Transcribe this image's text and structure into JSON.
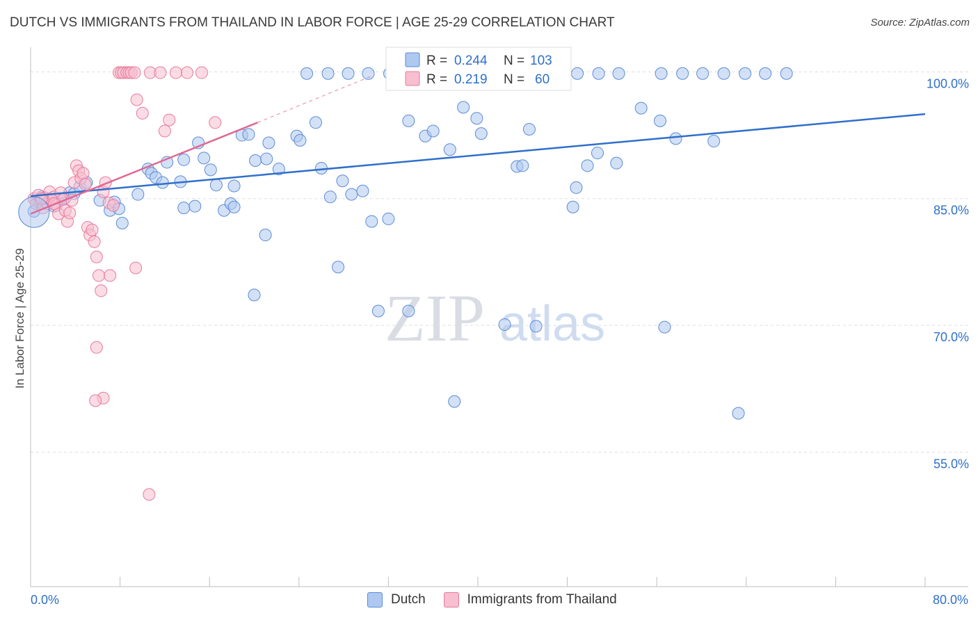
{
  "title": "DUTCH VS IMMIGRANTS FROM THAILAND IN LABOR FORCE | AGE 25-29 CORRELATION CHART",
  "source": "Source: ZipAtlas.com",
  "watermark": {
    "zip": "ZIP",
    "atlas": "atlas"
  },
  "legend_bottom": {
    "dutch": "Dutch",
    "thailand": "Immigrants from Thailand"
  },
  "stats": {
    "dutch": {
      "r_label": "R =",
      "r_value": "0.244",
      "n_label": "N =",
      "n_value": "103"
    },
    "thailand": {
      "r_label": "R =",
      "r_value": "0.219",
      "n_label": "N =",
      "n_value": "60"
    }
  },
  "colors": {
    "dutch_fill": "#aec8f0",
    "dutch_stroke": "#5b8bd6",
    "dutch_line": "#2f6fca",
    "thai_fill": "#f7bfd0",
    "thai_stroke": "#e8799d",
    "thai_line": "#e06892",
    "value_text": "#2f6fca",
    "grid": "#dddddd"
  },
  "chart_data": {
    "type": "scatter",
    "xlabel": "",
    "ylabel": "In Labor Force | Age 25-29",
    "xlim": [
      0,
      80
    ],
    "ylim": [
      40,
      102
    ],
    "x_tick_labels": [
      {
        "value": 0,
        "label": "0.0%"
      },
      {
        "value": 80,
        "label": "80.0%"
      }
    ],
    "y_ticks": [
      {
        "value": 100,
        "label": "100.0%"
      },
      {
        "value": 85,
        "label": "85.0%"
      },
      {
        "value": 70,
        "label": "70.0%"
      },
      {
        "value": 55,
        "label": "55.0%"
      }
    ],
    "series": [
      {
        "name": "Dutch",
        "trend": {
          "x0": 0,
          "y0": 85.3,
          "x1": 80,
          "y1": 95
        },
        "points": [
          [
            0.3,
            83.5
          ],
          [
            0.7,
            84.6
          ],
          [
            1.0,
            85.2
          ],
          [
            1.4,
            85.0
          ],
          [
            1.8,
            85.0
          ],
          [
            2.1,
            84.1
          ],
          [
            2.6,
            85.0
          ],
          [
            3.1,
            85.1
          ],
          [
            3.5,
            85.7
          ],
          [
            3.9,
            85.6
          ],
          [
            4.4,
            86.4
          ],
          [
            5.0,
            86.9
          ],
          [
            6.2,
            84.8
          ],
          [
            7.1,
            83.6
          ],
          [
            7.5,
            84.6
          ],
          [
            7.9,
            83.8
          ],
          [
            8.2,
            82.1
          ],
          [
            9.6,
            85.5
          ],
          [
            10.5,
            88.5
          ],
          [
            10.8,
            88.0
          ],
          [
            11.2,
            87.5
          ],
          [
            11.8,
            86.9
          ],
          [
            12.2,
            89.3
          ],
          [
            13.4,
            87.0
          ],
          [
            13.7,
            89.6
          ],
          [
            15.0,
            91.6
          ],
          [
            15.5,
            89.8
          ],
          [
            16.1,
            88.4
          ],
          [
            16.6,
            86.6
          ],
          [
            17.3,
            83.6
          ],
          [
            17.9,
            84.4
          ],
          [
            18.2,
            86.5
          ],
          [
            18.9,
            92.5
          ],
          [
            19.5,
            92.6
          ],
          [
            20.1,
            89.5
          ],
          [
            21.1,
            89.7
          ],
          [
            21.3,
            91.6
          ],
          [
            22.2,
            88.5
          ],
          [
            23.8,
            92.4
          ],
          [
            24.1,
            91.9
          ],
          [
            25.5,
            94.0
          ],
          [
            26.0,
            88.6
          ],
          [
            26.8,
            85.2
          ],
          [
            27.9,
            87.1
          ],
          [
            28.7,
            85.5
          ],
          [
            29.7,
            85.9
          ],
          [
            30.5,
            82.3
          ],
          [
            32.0,
            82.6
          ],
          [
            33.8,
            94.2
          ],
          [
            35.3,
            92.4
          ],
          [
            36.0,
            93.0
          ],
          [
            37.5,
            90.8
          ],
          [
            38.7,
            95.8
          ],
          [
            39.9,
            94.5
          ],
          [
            40.3,
            92.7
          ],
          [
            43.5,
            88.8
          ],
          [
            44.0,
            88.9
          ],
          [
            44.6,
            93.2
          ],
          [
            48.5,
            84.0
          ],
          [
            48.8,
            86.3
          ],
          [
            49.8,
            88.9
          ],
          [
            50.7,
            90.4
          ],
          [
            52.4,
            89.2
          ],
          [
            54.6,
            95.7
          ],
          [
            56.3,
            94.2
          ],
          [
            57.7,
            92.1
          ],
          [
            61.1,
            91.8
          ],
          [
            18.2,
            84.0
          ],
          [
            21.0,
            80.7
          ],
          [
            27.5,
            76.9
          ],
          [
            33.8,
            71.7
          ],
          [
            31.1,
            71.7
          ],
          [
            13.7,
            83.9
          ],
          [
            14.7,
            84.1
          ],
          [
            24.7,
            99.8
          ],
          [
            26.6,
            99.8
          ],
          [
            28.4,
            99.8
          ],
          [
            30.2,
            99.8
          ],
          [
            32.1,
            99.8
          ],
          [
            34.0,
            99.8
          ],
          [
            35.8,
            99.8
          ],
          [
            37.7,
            99.8
          ],
          [
            39.6,
            99.8
          ],
          [
            41.4,
            99.8
          ],
          [
            43.3,
            99.8
          ],
          [
            45.2,
            99.8
          ],
          [
            47.0,
            99.8
          ],
          [
            48.9,
            99.8
          ],
          [
            50.8,
            99.8
          ],
          [
            52.6,
            99.8
          ],
          [
            56.4,
            99.8
          ],
          [
            58.3,
            99.8
          ],
          [
            60.1,
            99.8
          ],
          [
            62.0,
            99.8
          ],
          [
            63.9,
            99.8
          ],
          [
            65.7,
            99.8
          ],
          [
            67.6,
            99.8
          ],
          [
            42.4,
            70.1
          ],
          [
            37.9,
            61.0
          ],
          [
            45.2,
            69.9
          ],
          [
            56.7,
            69.8
          ],
          [
            63.3,
            59.6
          ],
          [
            20.0,
            73.6
          ]
        ]
      },
      {
        "name": "Immigrants from Thailand",
        "trend": {
          "x0": 0,
          "y0": 83.2,
          "x1": 20.3,
          "y1": 94.0
        },
        "trend_dashed": {
          "x0": 20.3,
          "y0": 94.0,
          "x1": 30.5,
          "y1": 99.5
        },
        "points": [
          [
            0.3,
            85.0
          ],
          [
            0.5,
            84.4
          ],
          [
            0.7,
            85.4
          ],
          [
            0.9,
            84.8
          ],
          [
            1.1,
            83.9
          ],
          [
            1.3,
            85.1
          ],
          [
            1.5,
            84.4
          ],
          [
            1.7,
            85.8
          ],
          [
            1.9,
            84.9
          ],
          [
            2.1,
            85.2
          ],
          [
            2.3,
            84.2
          ],
          [
            2.5,
            83.2
          ],
          [
            2.7,
            85.7
          ],
          [
            2.9,
            84.9
          ],
          [
            3.1,
            83.6
          ],
          [
            3.3,
            82.3
          ],
          [
            3.5,
            83.3
          ],
          [
            3.7,
            84.8
          ],
          [
            3.9,
            86.9
          ],
          [
            4.1,
            88.9
          ],
          [
            4.3,
            88.3
          ],
          [
            4.5,
            87.4
          ],
          [
            4.7,
            88.0
          ],
          [
            4.9,
            86.7
          ],
          [
            5.1,
            81.6
          ],
          [
            5.3,
            80.7
          ],
          [
            5.5,
            81.3
          ],
          [
            5.7,
            79.9
          ],
          [
            5.9,
            78.1
          ],
          [
            6.1,
            75.9
          ],
          [
            6.3,
            74.1
          ],
          [
            6.5,
            85.8
          ],
          [
            6.7,
            86.9
          ],
          [
            7.0,
            84.5
          ],
          [
            7.4,
            84.2
          ],
          [
            7.9,
            99.9
          ],
          [
            8.1,
            99.9
          ],
          [
            8.3,
            99.9
          ],
          [
            8.6,
            99.9
          ],
          [
            8.8,
            99.9
          ],
          [
            9.0,
            99.9
          ],
          [
            9.3,
            99.9
          ],
          [
            9.5,
            96.7
          ],
          [
            10.0,
            95.1
          ],
          [
            10.7,
            99.9
          ],
          [
            11.6,
            99.9
          ],
          [
            12.0,
            93.0
          ],
          [
            12.4,
            94.3
          ],
          [
            13.0,
            99.9
          ],
          [
            14.0,
            99.9
          ],
          [
            15.3,
            99.9
          ],
          [
            16.5,
            94.0
          ],
          [
            7.1,
            75.9
          ],
          [
            9.4,
            76.8
          ],
          [
            5.9,
            67.4
          ],
          [
            6.5,
            61.4
          ],
          [
            5.8,
            61.1
          ],
          [
            10.6,
            50.0
          ],
          [
            2.1,
            84.4
          ],
          [
            1.0,
            85.0
          ]
        ]
      }
    ]
  }
}
